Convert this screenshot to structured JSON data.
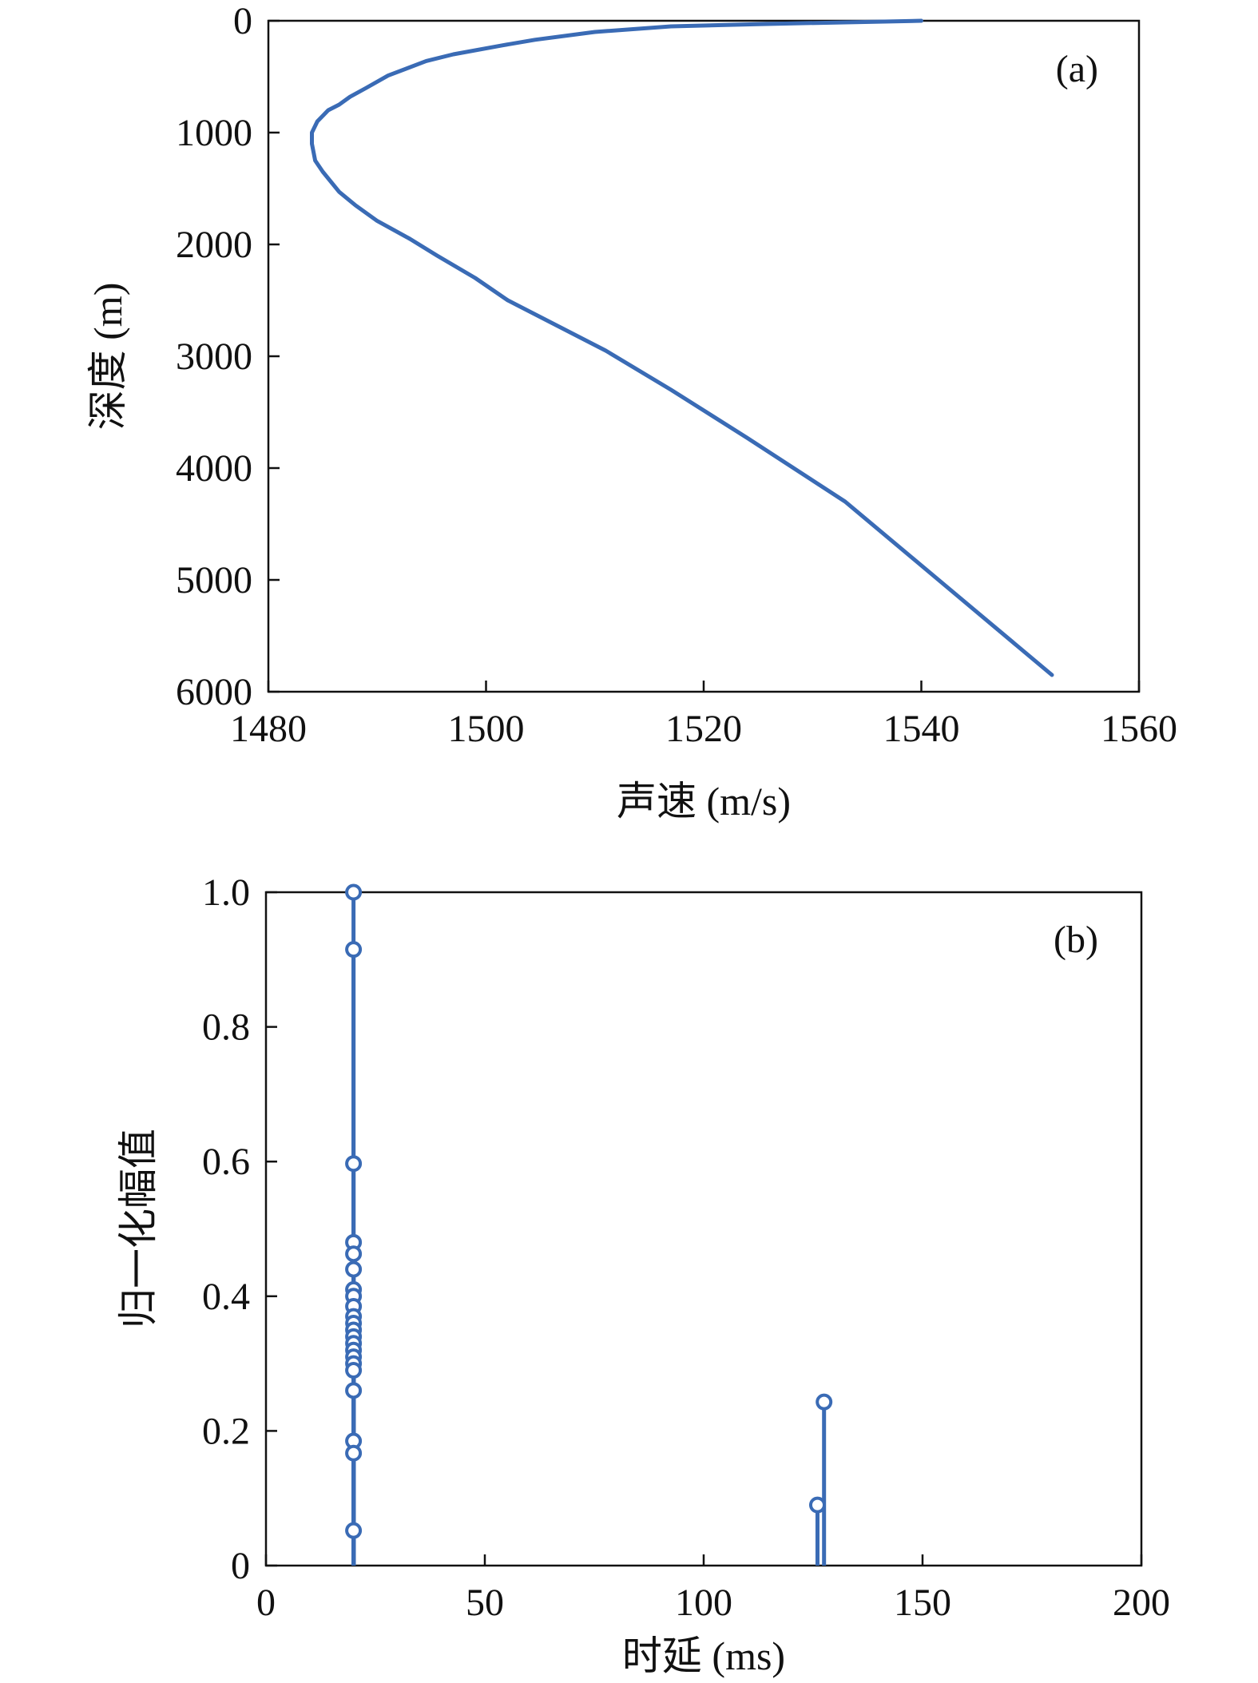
{
  "chart_data": [
    {
      "type": "line",
      "panel_label": "(a)",
      "xlabel": "声速 (m/s)",
      "ylabel": "深度 (m)",
      "xlim": [
        1480,
        1560
      ],
      "ylim": [
        0,
        6000
      ],
      "y_inverted": true,
      "xticks": [
        "1480",
        "1500",
        "1520",
        "1540",
        "1560"
      ],
      "yticks": [
        "0",
        "1000",
        "2000",
        "3000",
        "4000",
        "5000",
        "6000"
      ],
      "grid": false,
      "line_color": "#3a6bb5",
      "series": [
        {
          "x": [
            1540.0,
            1525.0,
            1517.0,
            1510.0,
            1504.5,
            1501.5,
            1497.0,
            1494.5,
            1491.0,
            1489.0,
            1487.5,
            1486.5,
            1485.5,
            1484.5,
            1484.0,
            1484.0,
            1484.3,
            1485.0,
            1486.5,
            1488.0,
            1490.0,
            1493.0,
            1495.5,
            1499.0,
            1502.0,
            1506.0,
            1511.0,
            1517.0,
            1524.0,
            1533.0,
            1552.0
          ],
          "y": [
            0,
            30,
            50,
            100,
            170,
            220,
            300,
            360,
            490,
            600,
            680,
            750,
            800,
            900,
            1000,
            1100,
            1250,
            1350,
            1530,
            1650,
            1790,
            1950,
            2100,
            2300,
            2500,
            2700,
            2950,
            3300,
            3730,
            4300,
            5850
          ]
        }
      ]
    },
    {
      "type": "stem",
      "panel_label": "(b)",
      "xlabel": "时延 (ms)",
      "ylabel": "归一化幅值",
      "xlim": [
        0,
        200
      ],
      "ylim": [
        0,
        1.0
      ],
      "xticks": [
        "0",
        "50",
        "100",
        "150",
        "200"
      ],
      "yticks": [
        "0",
        "0.2",
        "0.4",
        "0.6",
        "0.8",
        "1.0"
      ],
      "grid": false,
      "marker": "open-circle",
      "stem_color": "#3a6bb5",
      "series": [
        {
          "x": [
            20.0,
            20.0,
            20.0,
            20.0,
            20.0,
            20.0,
            20.0,
            20.0,
            20.0,
            20.0,
            20.0,
            20.0,
            20.0,
            20.0,
            20.0,
            20.0,
            20.0,
            20.0,
            20.0,
            20.0,
            20.0,
            20.0,
            126.0,
            127.5
          ],
          "y": [
            1.0,
            0.915,
            0.597,
            0.48,
            0.463,
            0.44,
            0.41,
            0.4,
            0.385,
            0.37,
            0.36,
            0.35,
            0.34,
            0.33,
            0.32,
            0.31,
            0.3,
            0.29,
            0.26,
            0.185,
            0.167,
            0.052,
            0.09,
            0.243
          ]
        }
      ]
    }
  ]
}
